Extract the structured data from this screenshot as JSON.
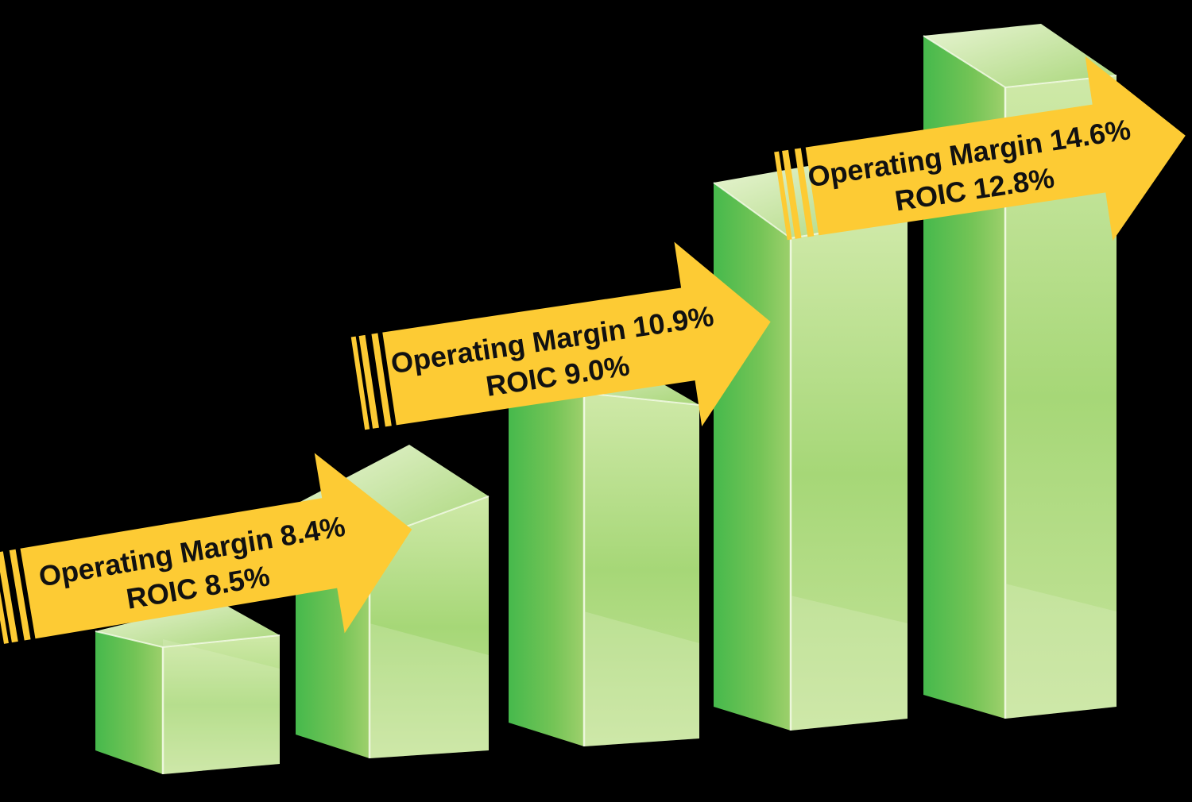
{
  "colors": {
    "background": "#000000",
    "bar_front_light": "#c9e4a0",
    "bar_front_dark": "#3db549",
    "bar_side": "#8cc63f",
    "bar_top": "#d8ecb8",
    "arrow": "#fdcb34"
  },
  "chart_data": {
    "type": "bar",
    "style": "3d-stepped-bars-with-arrows",
    "bars": 5,
    "relative_heights": [
      1,
      2,
      3,
      4,
      5
    ],
    "grid": false,
    "legend": "none",
    "annotations": [
      {
        "line1": "Operating Margin 8.4%",
        "line2": "ROIC 8.5%",
        "operating_margin": 8.4,
        "roic": 8.5
      },
      {
        "line1": "Operating Margin 10.9%",
        "line2": "ROIC 9.0%",
        "operating_margin": 10.9,
        "roic": 9.0
      },
      {
        "line1": "Operating Margin 14.6%",
        "line2": "ROIC 12.8%",
        "operating_margin": 14.6,
        "roic": 12.8
      }
    ]
  }
}
